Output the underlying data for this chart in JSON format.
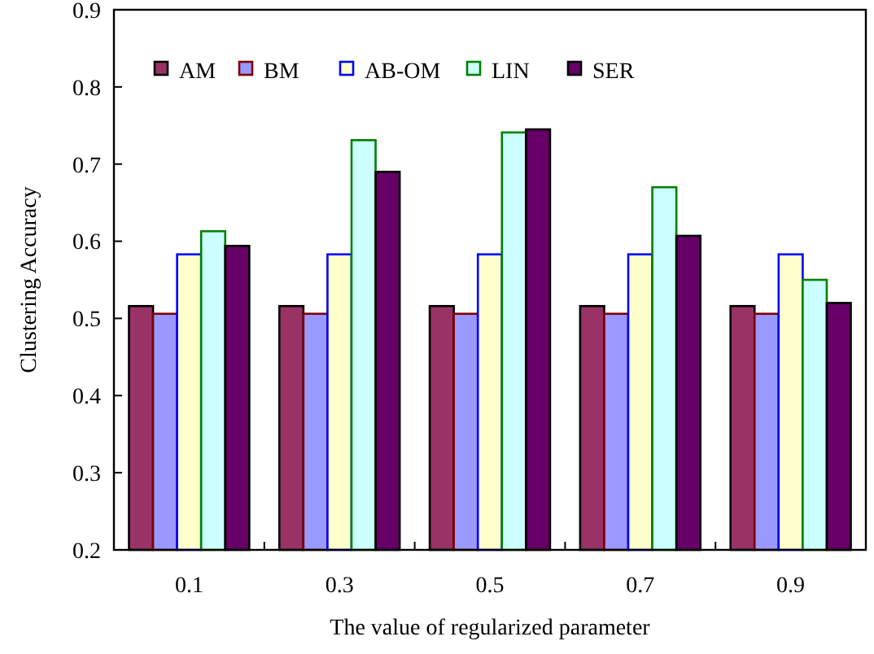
{
  "chart_data": {
    "type": "bar",
    "xlabel": "The value of regularized parameter",
    "ylabel": "Clustering Accuracy",
    "categories": [
      "0.1",
      "0.3",
      "0.5",
      "0.7",
      "0.9"
    ],
    "series": [
      {
        "name": "AM",
        "color": "#993366",
        "values": [
          0.516,
          0.516,
          0.516,
          0.516,
          0.516
        ]
      },
      {
        "name": "BM",
        "color": "#9999ff",
        "values": [
          0.506,
          0.506,
          0.506,
          0.506,
          0.506
        ]
      },
      {
        "name": "AB-OM",
        "color": "#ffffcc",
        "values": [
          0.583,
          0.583,
          0.583,
          0.583,
          0.583
        ]
      },
      {
        "name": "LIN",
        "color": "#ccffff",
        "values": [
          0.613,
          0.731,
          0.741,
          0.67,
          0.55
        ]
      },
      {
        "name": "SER",
        "color": "#660066",
        "values": [
          0.594,
          0.69,
          0.745,
          0.607,
          0.52
        ]
      }
    ],
    "ylim": [
      0.2,
      0.9
    ],
    "yticks": [
      0.2,
      0.3,
      0.4,
      0.5,
      0.6,
      0.7,
      0.8,
      0.9
    ],
    "grid": false,
    "legend": "top"
  }
}
